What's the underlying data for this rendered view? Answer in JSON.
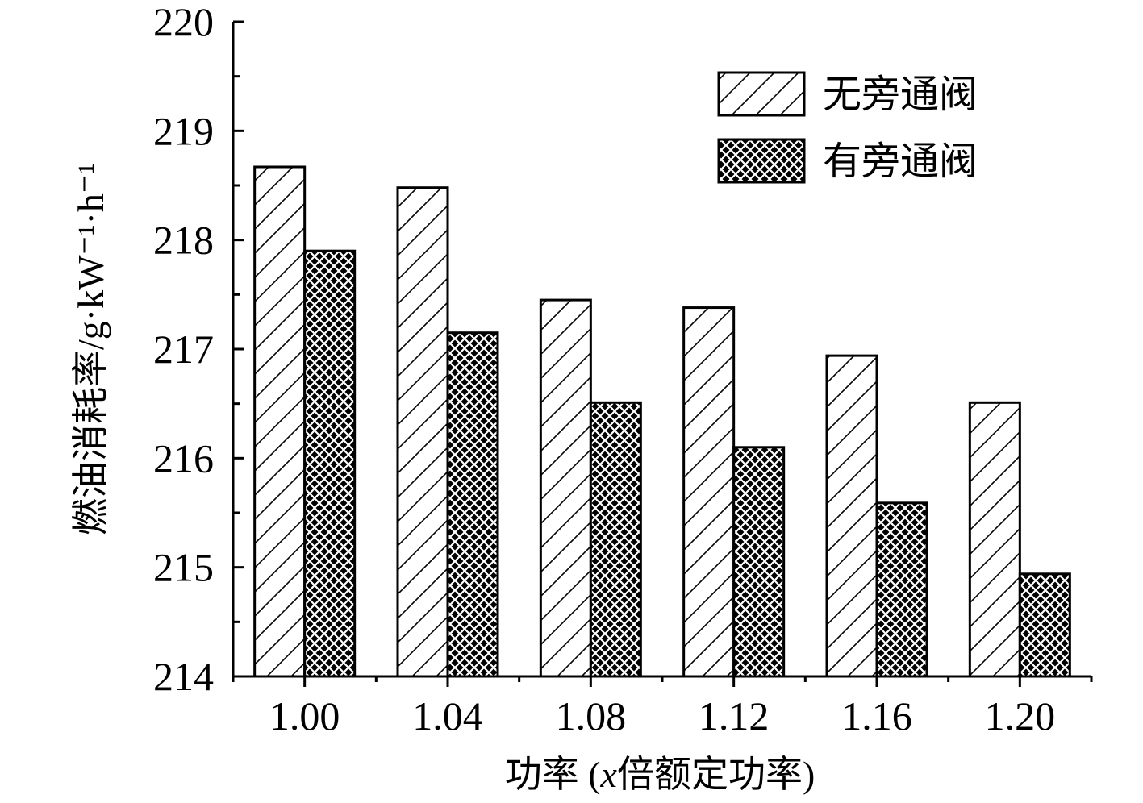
{
  "chart_data": {
    "type": "bar",
    "categories": [
      "1.00",
      "1.04",
      "1.08",
      "1.12",
      "1.16",
      "1.20"
    ],
    "series": [
      {
        "name": "无旁通阀",
        "values": [
          218.67,
          218.48,
          217.45,
          217.38,
          216.94,
          216.51
        ]
      },
      {
        "name": "有旁通阀",
        "values": [
          217.9,
          217.15,
          216.51,
          216.1,
          215.59,
          214.94
        ]
      }
    ],
    "xlabel": "功率 (x倍额定功率)",
    "ylabel": "燃油消耗率/g·kW⁻¹·h⁻¹",
    "ylim": [
      214,
      220
    ],
    "yticks": [
      "214",
      "215",
      "216",
      "217",
      "218",
      "219",
      "220"
    ],
    "grid": false,
    "legend_position": "top-right",
    "series_patterns": [
      "diagonal-hatch",
      "crosshatch"
    ]
  }
}
